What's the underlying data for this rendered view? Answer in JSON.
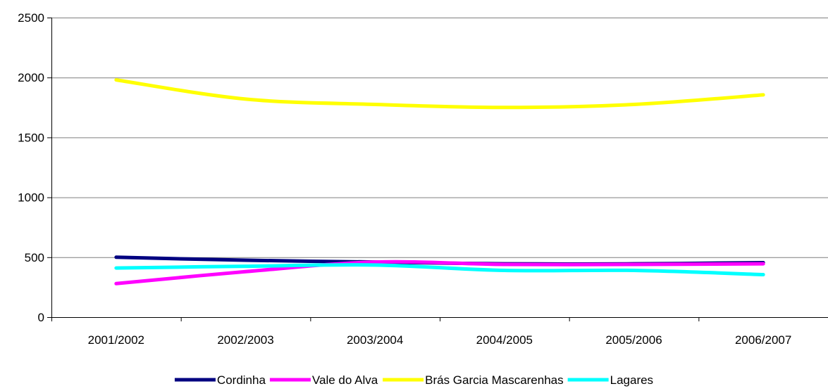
{
  "chart_data": {
    "type": "line",
    "title": "",
    "xlabel": "",
    "ylabel": "",
    "categories": [
      "2001/2002",
      "2002/2003",
      "2003/2004",
      "2004/2005",
      "2005/2006",
      "2006/2007"
    ],
    "ylim": [
      0,
      2500
    ],
    "yticks": [
      0,
      500,
      1000,
      1500,
      2000,
      2500
    ],
    "grid": "horizontal",
    "legend_position": "bottom",
    "series": [
      {
        "name": "Cordinha",
        "color": "#000080",
        "values": [
          500,
          475,
          460,
          445,
          445,
          455
        ]
      },
      {
        "name": "Vale do Alva",
        "color": "#FF00FF",
        "values": [
          280,
          380,
          460,
          440,
          440,
          445
        ]
      },
      {
        "name": "Brás Garcia Mascarenhas",
        "color": "#FFFF00",
        "values": [
          1980,
          1820,
          1775,
          1750,
          1775,
          1855
        ]
      },
      {
        "name": "Lagares",
        "color": "#00FFFF",
        "values": [
          410,
          425,
          435,
          390,
          390,
          355
        ]
      }
    ]
  }
}
